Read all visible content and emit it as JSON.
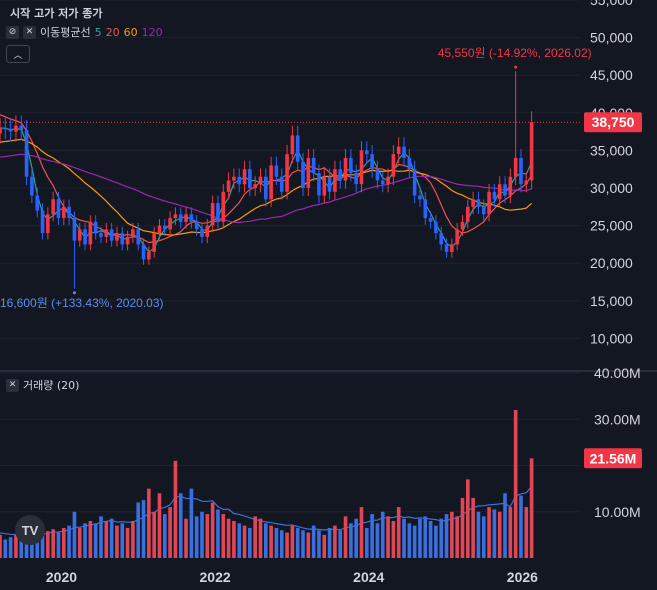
{
  "header": {
    "ohlc_label": "시작 고가 저가 종가",
    "ma_label": "이동평균선",
    "ma_periods": [
      {
        "text": "5",
        "color": "#26a69a"
      },
      {
        "text": "20",
        "color": "#ef5350"
      },
      {
        "text": "60",
        "color": "#ff9800"
      },
      {
        "text": "120",
        "color": "#9c27b0"
      }
    ],
    "volume_label": "거래량 (20)"
  },
  "colors": {
    "up": "#f23645",
    "down": "#2962ff",
    "upVol": "#e04655",
    "downVol": "#3a6fe0",
    "ma5": "#26a69a",
    "ma20": "#ef5350",
    "ma60": "#ff9800",
    "ma120": "#9c27b0",
    "volMA": "#3f6fd8",
    "grid": "#1e222d",
    "axisText": "#d1d4dc",
    "lastPrice": "#f23645",
    "minAnnot": "#5b8def",
    "maxAnnot": "#f23645"
  },
  "chart_data": {
    "type": "candlestick",
    "price_axis": {
      "ticks": [
        10000,
        15000,
        20000,
        25000,
        30000,
        35000,
        40000,
        45000,
        50000,
        55000
      ],
      "tick_labels": [
        "10,000",
        "15,000",
        "20,000",
        "25,000",
        "30,000",
        "35,000",
        "40,000",
        "45,000",
        "50,000",
        "55,000"
      ],
      "range": [
        5800,
        55000
      ]
    },
    "volume_axis": {
      "ticks": [
        10000000,
        20000000,
        30000000,
        40000000
      ],
      "tick_labels": [
        "10.00M",
        "",
        "30.00M",
        "40.00M"
      ],
      "range": [
        0,
        40000000
      ]
    },
    "time_axis": {
      "range": [
        2019.2,
        2026.75
      ],
      "ticks": [
        2020,
        2022,
        2024,
        2026
      ],
      "tick_labels": [
        "2020",
        "2022",
        "2024",
        "2026"
      ]
    },
    "last_price": {
      "value": 38750,
      "label": "38,750"
    },
    "last_volume": {
      "value": 21560000,
      "label": "21.56M"
    },
    "annotations": {
      "max": {
        "text": "45,550원 (-14.92%, 2026.02)",
        "price": 45550,
        "t": 2026.1
      },
      "min": {
        "text": "16,600원 (+133.43%, 2020.03)",
        "price": 16600,
        "t": 2020.15
      }
    },
    "closes": [
      38000,
      37800,
      37500,
      38300,
      37700,
      31500,
      29000,
      27000,
      24000,
      26500,
      28500,
      26000,
      27500,
      26000,
      23000,
      24500,
      22500,
      25500,
      24000,
      23500,
      24500,
      23000,
      24000,
      22500,
      23500,
      24500,
      22500,
      20500,
      21500,
      24000,
      25000,
      24500,
      26000,
      26500,
      25500,
      26500,
      25500,
      24500,
      23500,
      25000,
      28000,
      25500,
      29500,
      31000,
      31500,
      30500,
      32500,
      30000,
      30500,
      31500,
      28500,
      33000,
      31500,
      29500,
      34500,
      37000,
      33500,
      30000,
      34000,
      32000,
      29000,
      31500,
      29500,
      32500,
      31000,
      34000,
      32000,
      30500,
      35000,
      34500,
      32500,
      31000,
      30500,
      31500,
      34500,
      35500,
      34000,
      32500,
      29000,
      28500,
      26000,
      25500,
      24000,
      22500,
      21500,
      22500,
      24500,
      25500,
      27500,
      28500,
      27500,
      26500,
      29500,
      28500,
      30500,
      29000,
      31500,
      34000,
      30500,
      31000,
      38750
    ],
    "volumes": [
      5000000,
      4000000,
      4500000,
      5000000,
      4800000,
      5200000,
      6000000,
      5500000,
      6000000,
      5800000,
      6200000,
      5500000,
      6500000,
      7000000,
      10000000,
      6500000,
      7500000,
      8000000,
      7500000,
      9000000,
      8000000,
      8500000,
      7000000,
      7500000,
      6500000,
      8000000,
      12000000,
      12500000,
      15000000,
      10000000,
      14000000,
      9500000,
      11000000,
      21000000,
      14000000,
      8500000,
      15000000,
      9000000,
      10000000,
      9500000,
      12000000,
      10500000,
      9500000,
      8500000,
      8000000,
      7500000,
      7000000,
      6500000,
      9000000,
      8500000,
      7500000,
      7000000,
      6500000,
      6000000,
      5500000,
      7000000,
      6500000,
      6000000,
      5500000,
      7000000,
      6000000,
      5000000,
      6500000,
      7000000,
      6000000,
      9000000,
      7500000,
      8500000,
      11000000,
      6500000,
      9500000,
      7500000,
      10000000,
      9000000,
      8000000,
      11000000,
      8500000,
      7500000,
      7000000,
      8500000,
      9000000,
      8000000,
      7000000,
      8500000,
      9500000,
      10000000,
      9000000,
      13000000,
      17000000,
      13000000,
      10000000,
      9000000,
      11000000,
      10500000,
      10000000,
      14000000,
      11000000,
      32000000,
      13500000,
      11000000,
      21560000
    ]
  }
}
